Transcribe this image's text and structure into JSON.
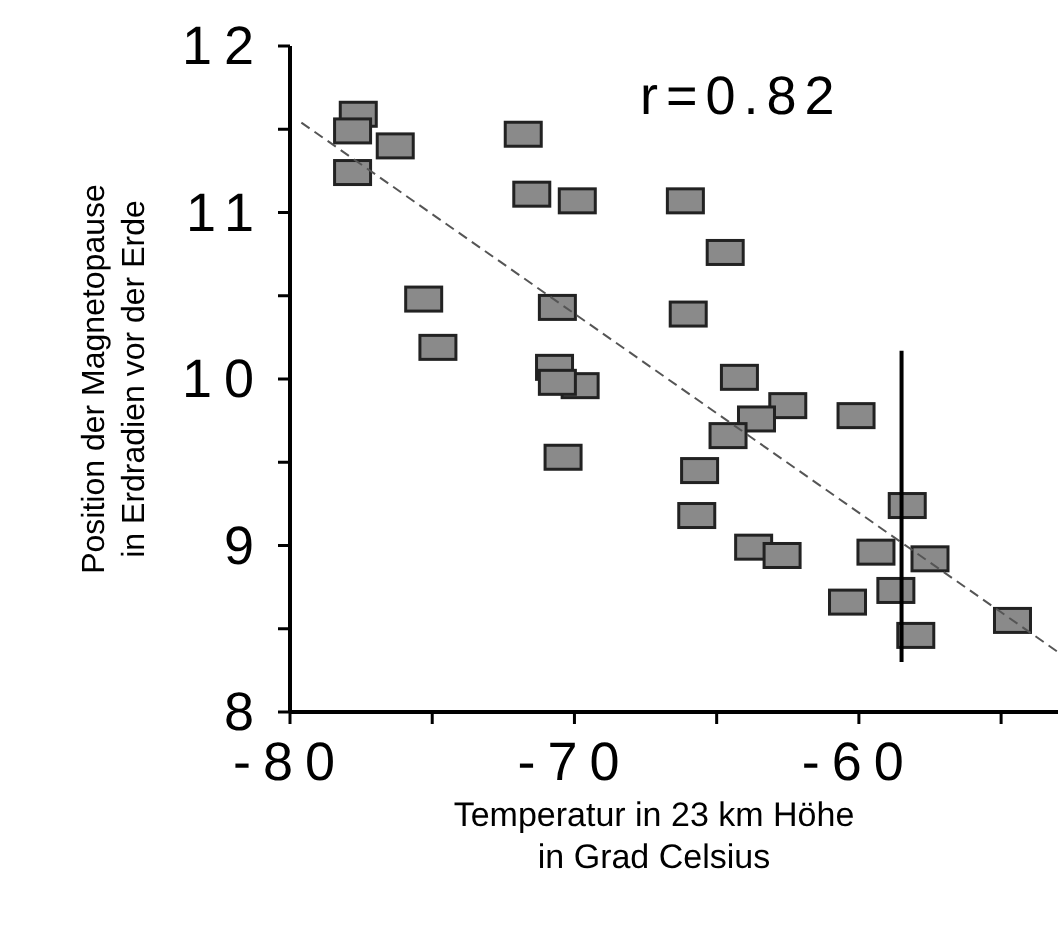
{
  "chart_data": {
    "type": "scatter",
    "xlabel": "Temperatur in 23 km Höhe\nin Grad Celsius",
    "ylabel": "Position der Magnetopause\nin Erdradien vor der Erde",
    "annotations": [
      "r=0.82"
    ],
    "xlim": [
      -80,
      -53
    ],
    "xticks": [
      -80,
      {
        "value": -75,
        "label": null
      },
      -70,
      {
        "value": -65,
        "label": null
      },
      -60,
      {
        "value": -55,
        "label": null
      }
    ],
    "ylim": [
      8,
      12
    ],
    "yticks": [
      8,
      {
        "value": 8.5,
        "label": null
      },
      9,
      {
        "value": 9.5,
        "label": null
      },
      10,
      {
        "value": 10.5,
        "label": null
      },
      11,
      {
        "value": 11.5,
        "label": null
      },
      12
    ],
    "marker": "square",
    "series": [
      {
        "color": "#8a8a8a",
        "x": [
          -77.6,
          -77.8,
          -76.3,
          -77.8,
          -71.8,
          -71.5,
          -69.9,
          -75.3,
          -74.8,
          -70.6,
          -70.7,
          -69.8,
          -70.6,
          -70.4,
          -66.1,
          -64.7,
          -66.0,
          -64.2,
          -62.5,
          -63.6,
          -60.1,
          -64.6,
          -65.6,
          -65.7,
          -63.7,
          -62.7,
          -58.3,
          -59.4,
          -57.5,
          -58.7,
          -60.4,
          -58.0,
          -54.6
        ],
        "values": [
          11.59,
          11.49,
          11.4,
          11.24,
          11.47,
          11.11,
          11.07,
          10.48,
          10.19,
          10.43,
          10.07,
          9.96,
          9.98,
          9.53,
          11.07,
          10.76,
          10.39,
          10.01,
          9.84,
          9.76,
          9.78,
          9.66,
          9.45,
          9.18,
          8.99,
          8.94,
          9.24,
          8.96,
          8.92,
          8.73,
          8.66,
          8.46,
          8.55
        ]
      },
      {
        "type": "line",
        "color": "#555555",
        "line_style": "dashed",
        "marker": "none",
        "x": [
          -79.6,
          -53
        ],
        "values": [
          11.54,
          8.36
        ]
      },
      {
        "type": "line",
        "color": "#000000",
        "line_style": "solid",
        "marker": "none",
        "x": [
          -58.5,
          -58.5
        ],
        "values": [
          8.3,
          10.17
        ]
      }
    ]
  }
}
